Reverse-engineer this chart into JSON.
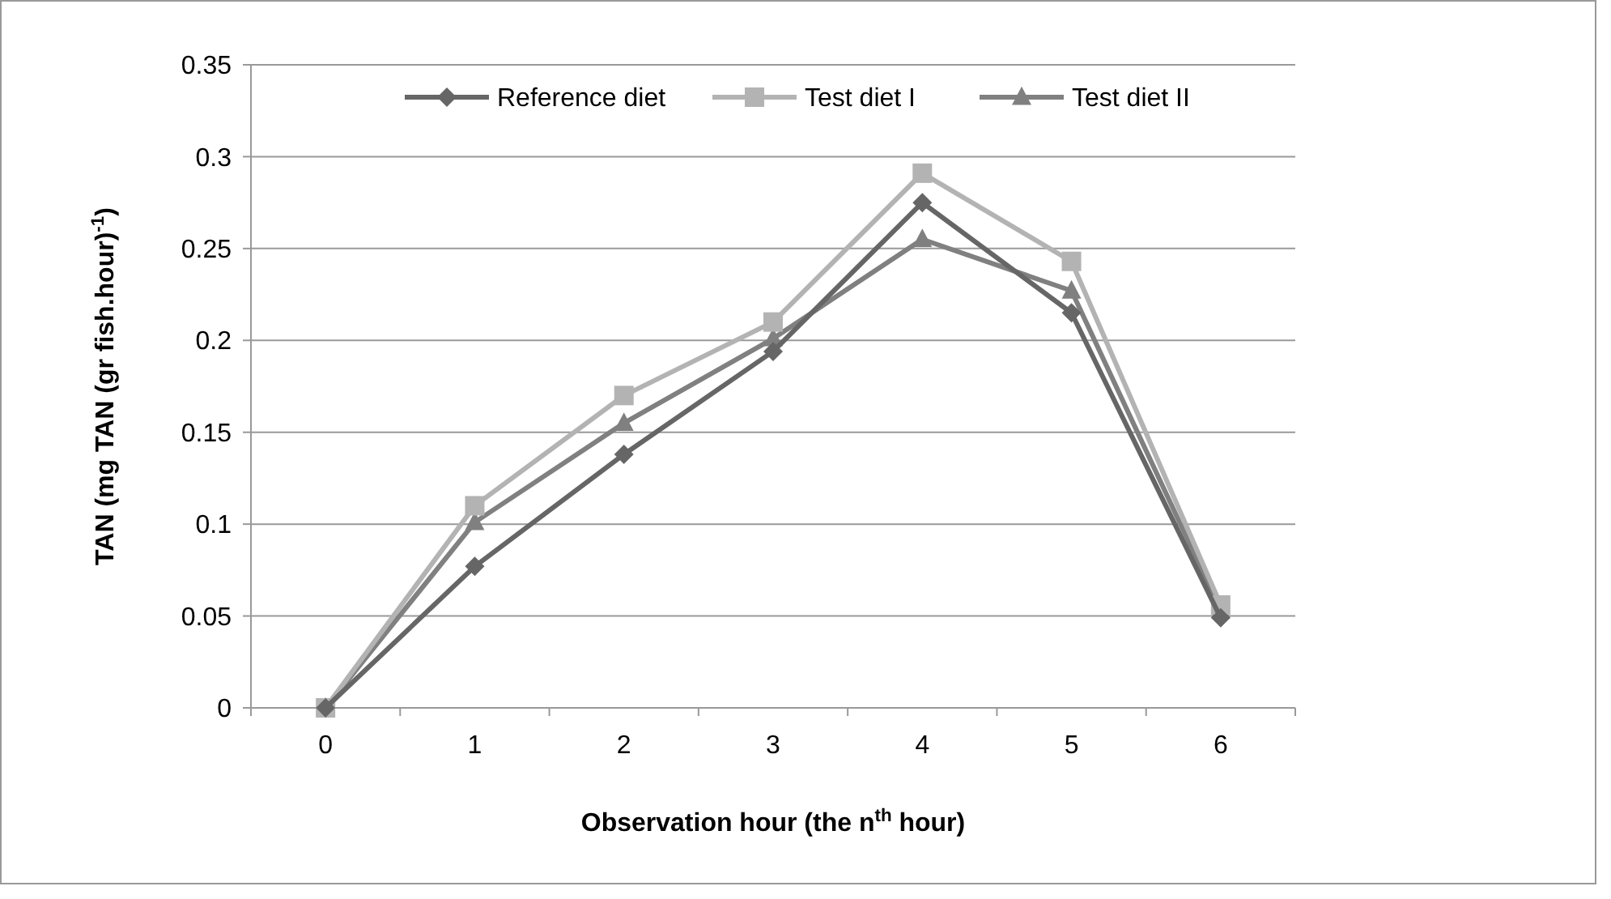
{
  "chart_data": {
    "type": "line",
    "xlabel": "Observation hour  (the n$^{th}$ hour)",
    "ylabel": "TAN (mg TAN (gr fish.hour)$^{-1}$)",
    "categories": [
      "0",
      "1",
      "2",
      "3",
      "4",
      "5",
      "6"
    ],
    "series": [
      {
        "name": "Reference diet",
        "color": "#666666",
        "marker": "diamond",
        "values": [
          0,
          0.077,
          0.138,
          0.194,
          0.275,
          0.215,
          0.049
        ]
      },
      {
        "name": "Test diet I",
        "color": "#b3b3b3",
        "marker": "square",
        "values": [
          0,
          0.11,
          0.17,
          0.21,
          0.291,
          0.243,
          0.056
        ]
      },
      {
        "name": "Test diet II",
        "color": "#808080",
        "marker": "triangle",
        "values": [
          0,
          0.101,
          0.155,
          0.201,
          0.255,
          0.227,
          0.053
        ]
      }
    ],
    "ylim": [
      0,
      0.35
    ],
    "yticks": [
      0,
      0.05,
      0.1,
      0.15,
      0.2,
      0.25,
      0.3,
      0.35
    ],
    "grid": "y",
    "legend": "top",
    "line_style": "solid"
  }
}
